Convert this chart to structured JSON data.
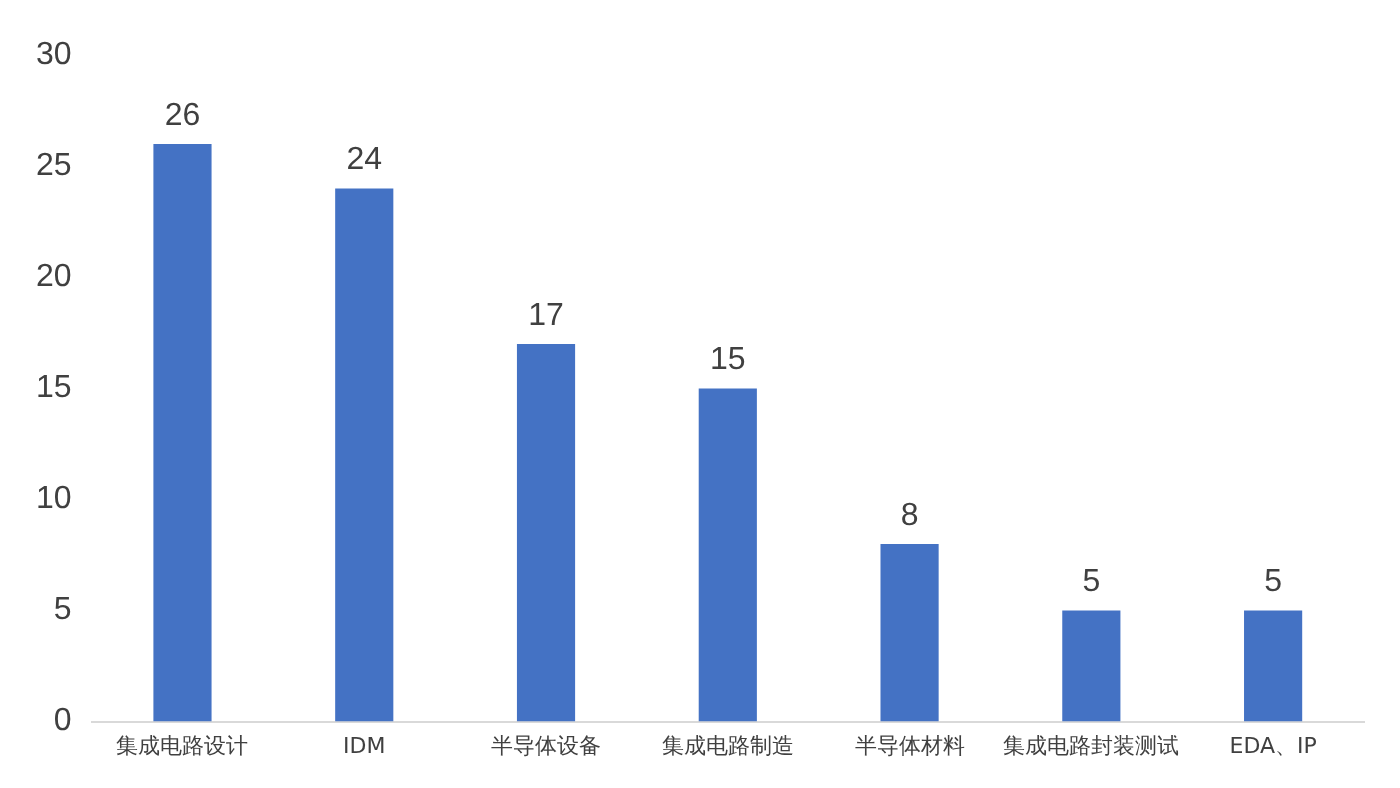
{
  "chart_data": {
    "type": "bar",
    "categories": [
      "集成电路设计",
      "IDM",
      "半导体设备",
      "集成电路制造",
      "半导体材料",
      "集成电路封装测试",
      "EDA、IP"
    ],
    "values": [
      26,
      24,
      17,
      15,
      8,
      5,
      5
    ],
    "color": "#4472c4",
    "ylim": [
      0,
      30
    ],
    "yticks": [
      0,
      5,
      10,
      15,
      20,
      25,
      30
    ],
    "data_labels": true,
    "grid": false,
    "legend": false
  }
}
